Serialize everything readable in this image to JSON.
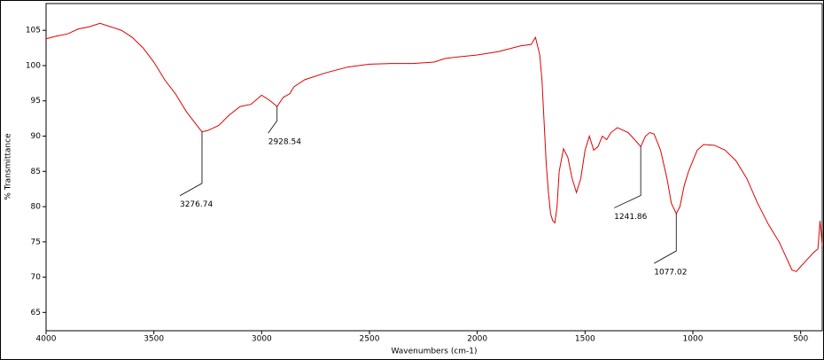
{
  "chart_data": {
    "type": "line",
    "xlabel": "Wavenumbers (cm-1)",
    "ylabel": "% Transmittance",
    "color": "#e00000",
    "xlim": [
      4000,
      400
    ],
    "ylim": [
      62.4,
      108.8
    ],
    "xticks": [
      4000,
      3500,
      3000,
      2500,
      2000,
      1500,
      1000,
      500
    ],
    "yticks": [
      65,
      70,
      75,
      80,
      85,
      90,
      95,
      100,
      105
    ],
    "x": [
      4000,
      3950,
      3900,
      3850,
      3800,
      3750,
      3700,
      3650,
      3600,
      3550,
      3500,
      3450,
      3400,
      3350,
      3300,
      3276.74,
      3250,
      3200,
      3150,
      3100,
      3050,
      3000,
      2960,
      2928.54,
      2900,
      2870,
      2850,
      2800,
      2700,
      2600,
      2500,
      2400,
      2300,
      2200,
      2150,
      2100,
      2000,
      1900,
      1800,
      1750,
      1730,
      1710,
      1700,
      1690,
      1680,
      1670,
      1660,
      1650,
      1640,
      1630,
      1620,
      1600,
      1580,
      1560,
      1540,
      1520,
      1500,
      1480,
      1460,
      1440,
      1420,
      1400,
      1380,
      1350,
      1300,
      1270,
      1241.86,
      1220,
      1200,
      1180,
      1150,
      1120,
      1100,
      1077.02,
      1060,
      1040,
      1020,
      1000,
      980,
      950,
      900,
      850,
      800,
      750,
      700,
      650,
      600,
      570,
      540,
      520,
      500,
      470,
      440,
      420,
      410,
      400
    ],
    "values": [
      103.8,
      104.2,
      104.5,
      105.2,
      105.5,
      106,
      105.5,
      105,
      104,
      102.5,
      100.5,
      98,
      96,
      93.5,
      91.5,
      90.6,
      90.8,
      91.5,
      93,
      94.2,
      94.5,
      95.8,
      95,
      94.2,
      95.5,
      96,
      97,
      98,
      99,
      99.8,
      100.2,
      100.3,
      100.3,
      100.5,
      101,
      101.2,
      101.5,
      102,
      102.8,
      103,
      104,
      101.5,
      98,
      92,
      86,
      82,
      79,
      78,
      77.7,
      80,
      85,
      88.2,
      87,
      84,
      82,
      84,
      88,
      90,
      88,
      88.5,
      90,
      89.5,
      90.5,
      91.2,
      90.5,
      89.5,
      88.5,
      90,
      90.5,
      90.3,
      88,
      84,
      80.5,
      79,
      80,
      83,
      85,
      86.5,
      88,
      88.8,
      88.7,
      88,
      86.5,
      84,
      80.5,
      77.5,
      75,
      73,
      71,
      70.8,
      71.5,
      72.5,
      73.5,
      74,
      78,
      74.5
    ],
    "annotations": [
      {
        "x": 3276.74,
        "y": 90.6
      },
      {
        "x": 2928.54,
        "y": 94.2
      },
      {
        "x": 1241.86,
        "y": 88.5
      },
      {
        "x": 1077.02,
        "y": 79
      }
    ]
  }
}
